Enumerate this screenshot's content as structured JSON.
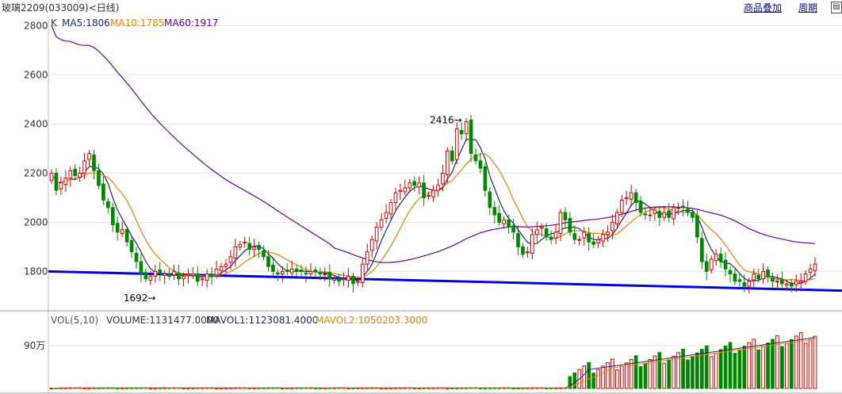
{
  "header": {
    "title": "玻璃2209(033009)<日线)",
    "overlay_button": "商品叠加",
    "period_button": "周期",
    "corner_icon": "settings-icon"
  },
  "indicators": {
    "price_prefix": "K",
    "ma5": "MA5:1806",
    "ma10": "MA10:1785",
    "ma60": "MA60:1917",
    "vol_name": "VOL(5,10)",
    "volume": "VOLUME:1131477.0000",
    "mavol1": "MAVOL1:1123081.4000",
    "mavol2": "MAVOL2:1050203.3000"
  },
  "colors": {
    "up": "#dd0000",
    "down": "#008800",
    "ma5": "#1a2a6c",
    "ma10": "#f08000",
    "ma60": "#660099",
    "trendline": "#0000dd",
    "grid": "#e4e4e4"
  },
  "chart_data": [
    {
      "type": "candlestick",
      "title": "玻璃2209(033009)",
      "yticks": [
        1800,
        2000,
        2200,
        2400,
        2600,
        2800
      ],
      "ylim": [
        1640,
        2840
      ],
      "grid": true,
      "annotations": [
        {
          "text": "2416→",
          "value": 2416
        },
        {
          "text": "1692→",
          "value": 1692
        }
      ],
      "close": [
        2200,
        2130,
        2160,
        2180,
        2210,
        2190,
        2200,
        2250,
        2280,
        2210,
        2150,
        2090,
        2060,
        1990,
        1960,
        1970,
        1920,
        1880,
        1840,
        1790,
        1770,
        1780,
        1800,
        1790,
        1790,
        1780,
        1800,
        1770,
        1780,
        1790,
        1790,
        1760,
        1770,
        1790,
        1780,
        1810,
        1820,
        1830,
        1860,
        1900,
        1910,
        1920,
        1890,
        1900,
        1890,
        1860,
        1820,
        1800,
        1790,
        1800,
        1800,
        1810,
        1800,
        1800,
        1790,
        1800,
        1800,
        1790,
        1790,
        1770,
        1770,
        1760,
        1770,
        1780,
        1750,
        1760,
        1830,
        1880,
        1930,
        1980,
        2010,
        2040,
        2080,
        2120,
        2130,
        2140,
        2160,
        2150,
        2160,
        2100,
        2110,
        2130,
        2150,
        2200,
        2290,
        2250,
        2380,
        2360,
        2410,
        2280,
        2250,
        2220,
        2130,
        2060,
        2030,
        2000,
        2010,
        1980,
        1960,
        1900,
        1870,
        1880,
        1950,
        1970,
        1980,
        1940,
        1930,
        1960,
        2040,
        2010,
        1960,
        1930,
        1930,
        1960,
        1920,
        1910,
        1930,
        1950,
        1960,
        2000,
        2040,
        2090,
        2100,
        2120,
        2080,
        2040,
        2030,
        2030,
        2050,
        2020,
        2040,
        2020,
        2060,
        2060,
        2060,
        2040,
        2020,
        1940,
        1840,
        1800,
        1850,
        1870,
        1840,
        1810,
        1790,
        1760,
        1760,
        1740,
        1760,
        1790,
        1770,
        1800,
        1780,
        1760,
        1760,
        1750,
        1750,
        1740,
        1760,
        1760,
        1790,
        1810,
        1830
      ],
      "ma5_last": 1806,
      "ma10_last": 1785,
      "ma60_last": 1917
    },
    {
      "type": "bar",
      "title": "VOL(5,10)",
      "yticks_label": "90万",
      "ytick_value": 900000,
      "volume_last": 1131477,
      "mavol1": 1123081.4,
      "mavol2": 1050203.3
    }
  ]
}
